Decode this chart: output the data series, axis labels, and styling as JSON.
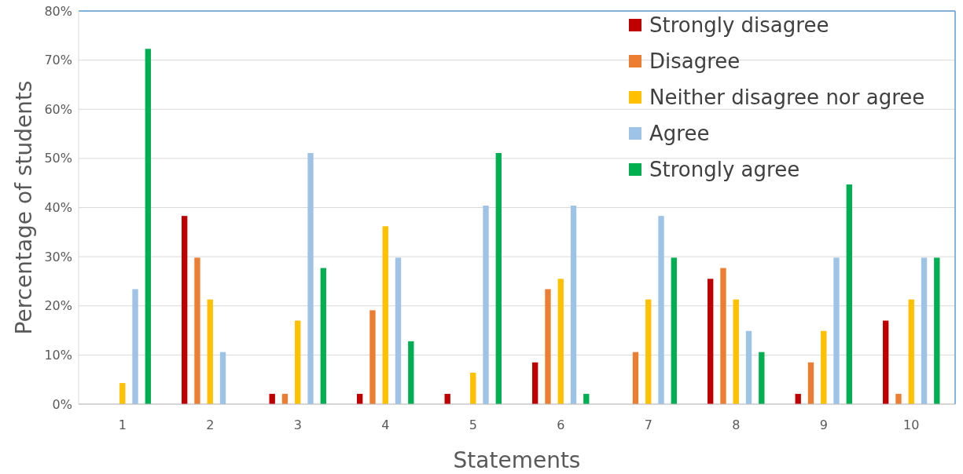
{
  "chart_data": {
    "type": "bar",
    "xlabel": "Statements",
    "ylabel": "Percentage of students",
    "categories": [
      "1",
      "2",
      "3",
      "4",
      "5",
      "6",
      "7",
      "8",
      "9",
      "10"
    ],
    "series": [
      {
        "name": "Strongly disagree",
        "color": "#c00000",
        "values": [
          0,
          38.3,
          2.1,
          2.1,
          2.1,
          8.5,
          0,
          25.5,
          2.1,
          17.0
        ]
      },
      {
        "name": "Disagree",
        "color": "#ed7d31",
        "values": [
          0,
          29.8,
          2.1,
          19.1,
          0,
          23.4,
          10.6,
          27.7,
          8.5,
          2.1
        ]
      },
      {
        "name": "Neither disagree nor agree",
        "color": "#ffc000",
        "values": [
          4.3,
          21.3,
          17.0,
          36.2,
          6.4,
          25.5,
          21.3,
          21.3,
          14.9,
          21.3
        ]
      },
      {
        "name": "Agree",
        "color": "#9dc3e6",
        "values": [
          23.4,
          10.6,
          51.1,
          29.8,
          40.4,
          40.4,
          38.3,
          14.9,
          29.8,
          29.8
        ]
      },
      {
        "name": "Strongly agree",
        "color": "#00b050",
        "values": [
          72.3,
          0,
          27.7,
          12.8,
          51.1,
          2.1,
          29.8,
          10.6,
          44.7,
          29.8
        ]
      }
    ],
    "ylim": [
      0,
      80
    ],
    "yticks": [
      {
        "value": 0,
        "label": "0%"
      },
      {
        "value": 10,
        "label": "10%"
      },
      {
        "value": 20,
        "label": "20%"
      },
      {
        "value": 30,
        "label": "30%"
      },
      {
        "value": 40,
        "label": "40%"
      },
      {
        "value": 50,
        "label": "50%"
      },
      {
        "value": 60,
        "label": "60%"
      },
      {
        "value": 70,
        "label": "70%"
      },
      {
        "value": 80,
        "label": "80%"
      }
    ],
    "grid": "y",
    "legend": "top right"
  }
}
